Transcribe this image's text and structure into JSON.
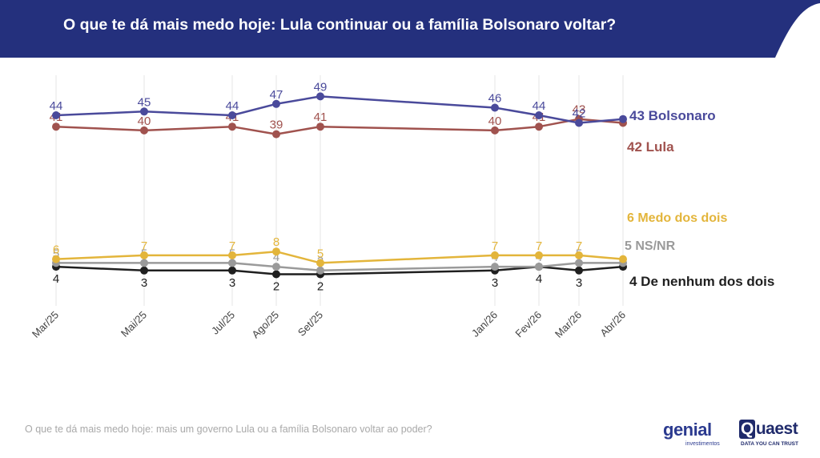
{
  "title": "O que te dá mais medo hoje: Lula continuar ou a família Bolsonaro voltar?",
  "footnote": "O que te dá mais medo hoje: mais um governo Lula ou a família Bolsonaro voltar ao poder?",
  "logos": {
    "genial": "genial",
    "genial_sub": "investimentos",
    "quaest_q": "Q",
    "quaest": "uaest",
    "quaest_sub": "DATA YOU CAN TRUST"
  },
  "colors": {
    "header": "#24307d",
    "bolsonaro": "#4a4a9b",
    "lula": "#a0524e",
    "medo": "#e3b53b",
    "nsnr": "#9a9a9a",
    "nenhum": "#1f1f1f"
  },
  "chart_data": {
    "type": "line",
    "x": [
      "Mar/25",
      "Mai/25",
      "Jul/25",
      "Ago/25",
      "Set/25",
      "Jan/26",
      "Fev/26",
      "Mar/26",
      "Abr/26"
    ],
    "ylim": [
      0,
      55
    ],
    "grid": "vertical",
    "legend": "right",
    "series": [
      {
        "name": "Bolsonaro",
        "end_label": "43 Bolsonaro",
        "color": "#4a4a9b",
        "values": [
          44,
          45,
          44,
          47,
          49,
          46,
          44,
          42,
          43
        ],
        "labels": [
          "44",
          "45",
          "44",
          "47",
          "49",
          "46",
          "44",
          "42",
          ""
        ],
        "label_pos": "above"
      },
      {
        "name": "Lula",
        "end_label": "42 Lula",
        "color": "#a0524e",
        "values": [
          41,
          40,
          41,
          39,
          41,
          40,
          41,
          43,
          42
        ],
        "labels": [
          "41",
          "40",
          "41",
          "39",
          "41",
          "40",
          "41",
          "43",
          ""
        ],
        "label_pos": "above"
      },
      {
        "name": "Medo dos dois",
        "end_label": "6 Medo dos dois",
        "color": "#e3b53b",
        "values": [
          6,
          7,
          7,
          8,
          5,
          7,
          7,
          7,
          6
        ],
        "labels": [
          "6",
          "7",
          "7",
          "8",
          "5",
          "7",
          "7",
          "7",
          ""
        ],
        "label_pos": "above"
      },
      {
        "name": "NS/NR",
        "end_label": "5 NS/NR",
        "color": "#9a9a9a",
        "values": [
          5,
          5,
          5,
          4,
          3,
          4,
          4,
          5,
          5
        ],
        "labels": [
          "5",
          "5",
          "5",
          "4",
          "3",
          "4",
          "4",
          "5",
          ""
        ],
        "label_pos": "above"
      },
      {
        "name": "De nenhum dos dois",
        "end_label": "4 De nenhum dos dois",
        "color": "#1f1f1f",
        "values": [
          4,
          3,
          3,
          2,
          2,
          3,
          4,
          3,
          4
        ],
        "labels": [
          "4",
          "3",
          "3",
          "2",
          "2",
          "3",
          "4",
          "3",
          ""
        ],
        "label_pos": "below"
      }
    ]
  }
}
